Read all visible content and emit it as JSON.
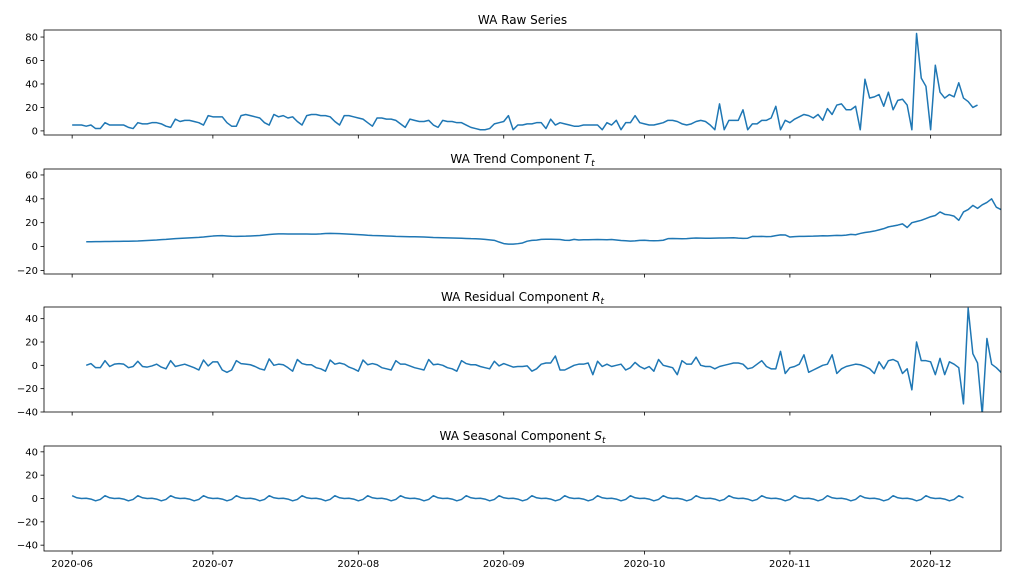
{
  "chart_data": [
    {
      "type": "line",
      "title": "WA Raw Series",
      "series_color": "#1f77b4",
      "ylim": [
        -3.5,
        86
      ],
      "yticks": [
        0,
        20,
        40,
        60,
        80
      ],
      "ytick_labels": [
        "0",
        "20",
        "40",
        "60",
        "80"
      ],
      "x_start": "2020-06-01",
      "x_step_days": 1,
      "values": [
        5,
        5,
        5,
        4,
        5,
        2,
        2,
        7,
        5,
        5,
        5,
        5,
        3,
        2,
        7,
        6,
        6,
        7,
        7,
        6,
        4,
        3,
        10,
        8,
        9,
        9,
        8,
        7,
        5,
        13,
        12,
        12,
        12,
        7,
        4,
        4,
        13,
        14,
        13,
        12,
        11,
        7,
        5,
        14,
        12,
        13,
        11,
        12,
        8,
        5,
        13,
        14,
        14,
        13,
        13,
        12,
        8,
        5,
        13,
        13,
        12,
        11,
        10,
        7,
        4,
        11,
        11,
        10,
        10,
        9,
        6,
        3,
        10,
        9,
        8,
        8,
        9,
        5,
        3,
        9,
        8,
        8,
        7,
        7,
        5,
        3,
        2,
        1,
        1,
        2,
        6,
        7,
        8,
        13,
        1,
        5,
        5,
        6,
        6,
        7,
        7,
        2,
        10,
        5,
        7,
        6,
        5,
        4,
        4,
        5,
        5,
        5,
        5,
        1,
        7,
        5,
        9,
        1,
        7,
        7,
        13,
        7,
        6,
        5,
        5,
        6,
        7,
        9,
        9,
        8,
        6,
        5,
        6,
        8,
        9,
        8,
        5,
        1,
        23,
        1,
        9,
        9,
        9,
        18,
        1,
        6,
        6,
        9,
        9,
        11,
        21,
        1,
        9,
        7,
        10,
        12,
        14,
        13,
        11,
        14,
        9,
        19,
        14,
        22,
        23,
        18,
        18,
        21,
        1,
        44,
        28,
        29,
        31,
        21,
        33,
        18,
        26,
        27,
        22,
        1,
        83,
        45,
        38,
        1,
        56,
        33,
        28,
        31,
        29,
        41,
        28,
        25,
        20,
        22
      ]
    },
    {
      "type": "line",
      "title": "WA Trend Component $T_t$",
      "series_color": "#1f77b4",
      "ylim": [
        -23,
        65
      ],
      "yticks": [
        -20,
        0,
        20,
        40,
        60
      ],
      "ytick_labels": [
        "−20",
        "0",
        "20",
        "40",
        "60"
      ],
      "x_start": "2020-06-04",
      "x_step_days": 1,
      "values": [
        4,
        4,
        4.1,
        4.1,
        4.2,
        4.2,
        4.3,
        4.3,
        4.4,
        4.5,
        4.6,
        4.7,
        4.9,
        5.1,
        5.3,
        5.5,
        5.8,
        6,
        6.3,
        6.6,
        6.9,
        7.1,
        7.3,
        7.5,
        7.7,
        8,
        8.4,
        8.8,
        9.1,
        9.2,
        8.9,
        8.6,
        8.5,
        8.6,
        8.7,
        8.9,
        9.1,
        9.3,
        9.7,
        10.1,
        10.4,
        10.6,
        10.6,
        10.5,
        10.5,
        10.5,
        10.5,
        10.5,
        10.4,
        10.4,
        10.6,
        10.9,
        11,
        10.9,
        10.8,
        10.6,
        10.4,
        10.2,
        10,
        9.8,
        9.5,
        9.3,
        9.2,
        9.1,
        8.9,
        8.7,
        8.5,
        8.4,
        8.3,
        8.2,
        8.2,
        8.1,
        8,
        7.8,
        7.6,
        7.5,
        7.4,
        7.3,
        7.2,
        7.1,
        7,
        6.8,
        6.6,
        6.5,
        6.3,
        6,
        5.6,
        5.2,
        3.8,
        2.5,
        2,
        2,
        2.4,
        3,
        4.5,
        5.2,
        5.4,
        6,
        6.1,
        6.1,
        6,
        5.9,
        5.3,
        5.2,
        6,
        5.5,
        5.7,
        5.7,
        5.8,
        5.9,
        5.8,
        5.7,
        5.9,
        5.5,
        5.1,
        4.9,
        4.6,
        4.8,
        5.2,
        5.3,
        5,
        4.9,
        5,
        5.3,
        6.6,
        6.7,
        6.6,
        6.5,
        6.6,
        7,
        7.2,
        7.1,
        7,
        7,
        7.1,
        7.2,
        7.2,
        7.3,
        7.4,
        7.1,
        6.9,
        7,
        8.5,
        8.4,
        8.5,
        8.3,
        8.4,
        9.2,
        9.8,
        9.7,
        8,
        8.3,
        8.5,
        8.5,
        8.6,
        8.7,
        8.9,
        9.1,
        9,
        9.2,
        9.4,
        9.3,
        9.6,
        10.2,
        9.9,
        11,
        11.8,
        12.3,
        13,
        14,
        15,
        16.5,
        17.2,
        18,
        19,
        16,
        20,
        21,
        22,
        23.5,
        25,
        26,
        29,
        27,
        26.5,
        25.5,
        22,
        29,
        31,
        34.5,
        32,
        35,
        37,
        40,
        33,
        31,
        32,
        35,
        30,
        28.5,
        27.5
      ]
    },
    {
      "type": "line",
      "title": "WA Residual Component $R_t$",
      "series_color": "#1f77b4",
      "ylim": [
        -40,
        50
      ],
      "yticks": [
        -40,
        -20,
        0,
        20,
        40
      ],
      "ytick_labels": [
        "−40",
        "−20",
        "0",
        "20",
        "40"
      ],
      "x_start": "2020-06-04",
      "x_step_days": 1,
      "values": [
        0,
        1.5,
        -2,
        -2,
        4,
        -1,
        1,
        1.5,
        1,
        -2,
        -1,
        3.5,
        -1,
        -1.5,
        -0.5,
        1,
        -1.5,
        -3,
        4,
        -1,
        0,
        1,
        -0.5,
        -2,
        -4,
        4.5,
        -0.5,
        3,
        3,
        -4,
        -6,
        -4,
        4,
        1.5,
        1,
        0.5,
        -1,
        -3,
        -4,
        5.5,
        0,
        1,
        0.5,
        -2,
        -5,
        5,
        1.5,
        0.5,
        0.5,
        -2,
        -3,
        -5,
        4.5,
        1,
        2,
        1,
        -1.5,
        -3,
        -5,
        4.5,
        0.5,
        1.5,
        0.5,
        -2,
        -3,
        -4,
        4,
        1,
        1,
        -0.5,
        -2,
        -3,
        -4,
        5,
        0.5,
        1,
        0,
        -2,
        -3,
        -5,
        4,
        1.5,
        0.5,
        0.5,
        -1,
        -2,
        -3,
        3.5,
        -0.5,
        1.5,
        0,
        -1.5,
        -1,
        -1,
        -0.5,
        -5,
        -3,
        1,
        2,
        2,
        8,
        -4,
        -4,
        -2,
        0,
        1,
        1,
        2,
        -8,
        3.5,
        -1,
        1,
        -1,
        0,
        1,
        -4,
        -2,
        2.5,
        -1,
        -3,
        -1,
        -5,
        5,
        0,
        -1,
        -2,
        -8,
        4,
        1,
        1,
        7,
        0,
        -1,
        -1,
        -3,
        -1,
        0,
        1,
        2,
        2,
        1,
        -3,
        -2,
        1,
        4,
        -1,
        -3,
        -3,
        12,
        -7,
        -2,
        -1,
        1,
        9,
        -6,
        -4,
        -2,
        0,
        1,
        9,
        -7,
        -3,
        -1,
        0,
        1,
        0.5,
        -1,
        -3,
        -7,
        3,
        -3,
        4,
        5,
        3,
        -7,
        -3,
        -21,
        20,
        4,
        4,
        3,
        -8,
        6,
        -8,
        3,
        1,
        -2,
        -33,
        49,
        10,
        2,
        -42,
        23,
        1,
        -2,
        -6,
        -2,
        13,
        1
      ]
    },
    {
      "type": "line",
      "title": "WA Seasonal Component $S_t$",
      "series_color": "#1f77b4",
      "ylim": [
        -45,
        45
      ],
      "yticks": [
        -40,
        -20,
        0,
        20,
        40
      ],
      "ytick_labels": [
        "−40",
        "−20",
        "0",
        "20",
        "40"
      ],
      "x_start": "2020-06-01",
      "x_step_days": 1,
      "pattern_values": [
        2.4,
        0.6,
        0,
        0.2,
        -0.5,
        -2,
        -0.8
      ],
      "values": []
    }
  ],
  "x_axis": {
    "tick_dates": [
      "2020-06-01",
      "2020-07-01",
      "2020-08-01",
      "2020-09-01",
      "2020-10-01",
      "2020-11-01",
      "2020-12-01"
    ],
    "tick_labels": [
      "2020-06",
      "2020-07",
      "2020-08",
      "2020-09",
      "2020-10",
      "2020-11",
      "2020-12"
    ],
    "xlim": [
      "2020-05-26",
      "2020-12-16"
    ]
  },
  "colors": {
    "line": "#1f77b4",
    "axes": "#000000",
    "background": "#ffffff"
  }
}
